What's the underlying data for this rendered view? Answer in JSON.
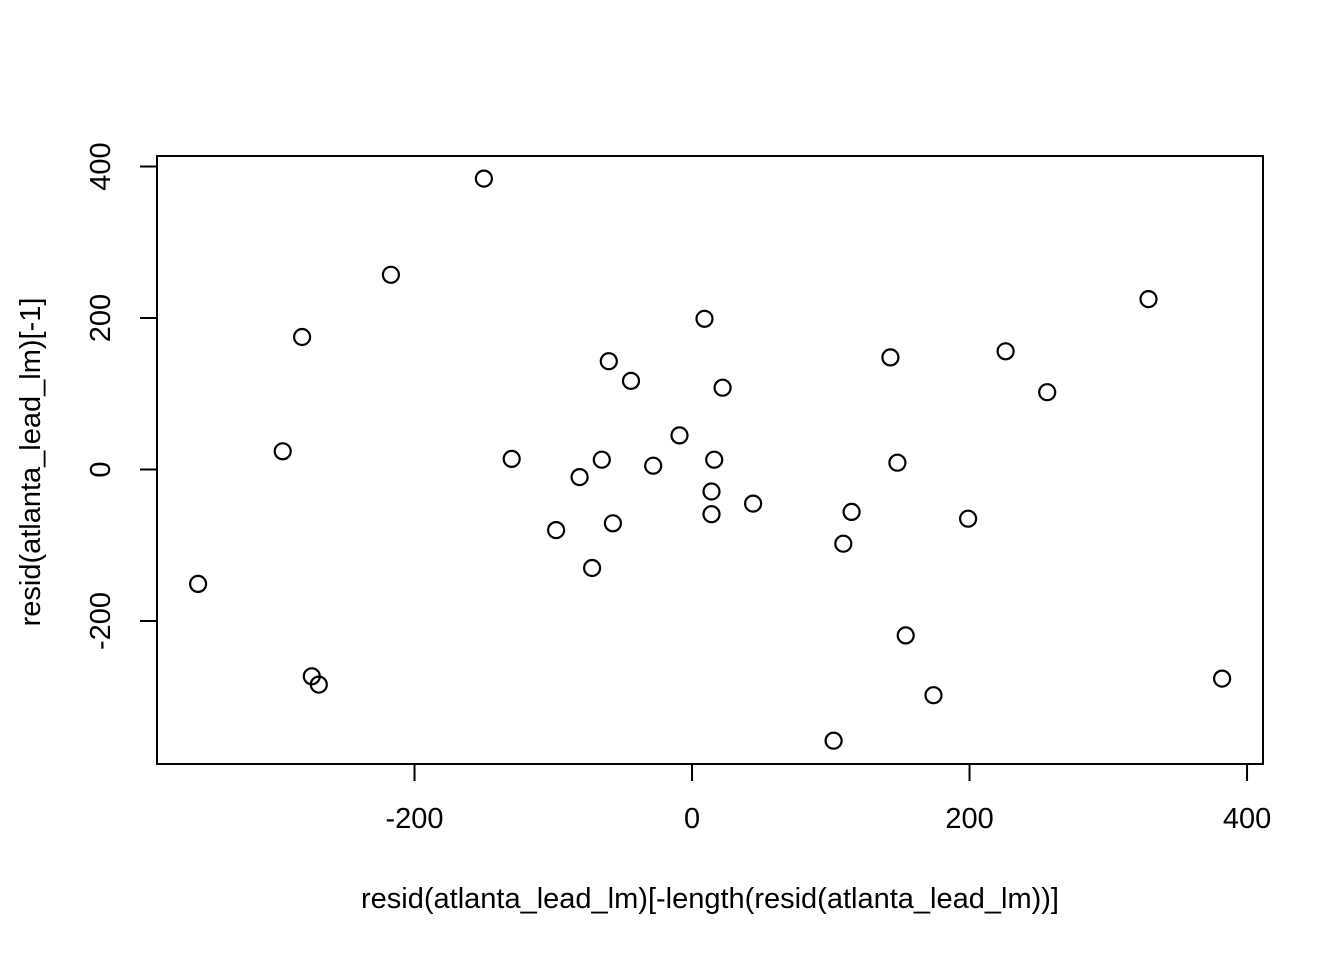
{
  "colors": {
    "background": "#ffffff",
    "foreground": "#000000"
  },
  "chart_data": {
    "type": "scatter",
    "title": "",
    "xlabel": "resid(atlanta_lead_lm)[-length(resid(atlanta_lead_lm))]",
    "ylabel": "resid(atlanta_lead_lm)[-1]",
    "xlim": [
      -385.6,
      411.5
    ],
    "ylim": [
      -388.8,
      413.9
    ],
    "x_ticks": [
      -200,
      0,
      200,
      400
    ],
    "y_ticks": [
      -200,
      0,
      200,
      400
    ],
    "grid": false,
    "legend": false,
    "marker": {
      "shape": "open-circle",
      "radius_px": 8,
      "stroke_color": "#000000",
      "fill": "none"
    },
    "points": [
      [
        -356,
        -151
      ],
      [
        -295,
        24
      ],
      [
        -281,
        175
      ],
      [
        -274,
        -273
      ],
      [
        -269,
        -284
      ],
      [
        -217,
        257
      ],
      [
        -150,
        384
      ],
      [
        -130,
        14
      ],
      [
        -98,
        -80
      ],
      [
        -81,
        -10
      ],
      [
        -72,
        -130
      ],
      [
        -65,
        13
      ],
      [
        -60,
        143
      ],
      [
        -57,
        -71
      ],
      [
        -44,
        117
      ],
      [
        -28,
        5
      ],
      [
        -9,
        45
      ],
      [
        9,
        199
      ],
      [
        14,
        -29
      ],
      [
        14,
        -59
      ],
      [
        16,
        13
      ],
      [
        22,
        108
      ],
      [
        44,
        -45
      ],
      [
        102,
        -358
      ],
      [
        109,
        -98
      ],
      [
        115,
        -56
      ],
      [
        143,
        148
      ],
      [
        148,
        9
      ],
      [
        154,
        -219
      ],
      [
        174,
        -298
      ],
      [
        199,
        -65
      ],
      [
        226,
        156
      ],
      [
        256,
        102
      ],
      [
        329,
        225
      ],
      [
        382,
        -276
      ]
    ]
  }
}
